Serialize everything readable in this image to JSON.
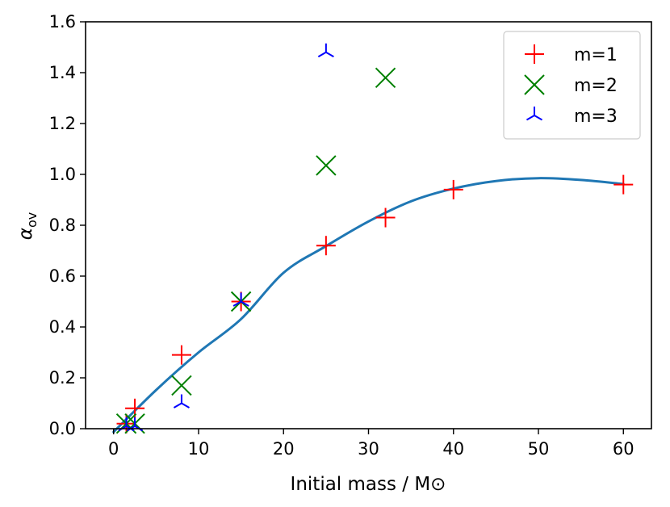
{
  "chart_data": {
    "type": "scatter",
    "title": "",
    "xlabel": "Initial mass / M⊙",
    "ylabel": "αov",
    "ylabel_main": "α",
    "ylabel_sub": "ov",
    "xlim": [
      -3.3,
      63.3
    ],
    "ylim": [
      0.0,
      1.6
    ],
    "xticks": [
      0,
      10,
      20,
      30,
      40,
      50,
      60
    ],
    "xtick_labels": [
      "0",
      "10",
      "20",
      "30",
      "40",
      "50",
      "60"
    ],
    "yticks": [
      0.0,
      0.2,
      0.4,
      0.6,
      0.8,
      1.0,
      1.2,
      1.4,
      1.6
    ],
    "ytick_labels": [
      "0.0",
      "0.2",
      "0.4",
      "0.6",
      "0.8",
      "1.0",
      "1.2",
      "1.4",
      "1.6"
    ],
    "grid": false,
    "legend_position": "top-right",
    "series": [
      {
        "name": "m=1",
        "marker": "plus",
        "color": "#ff0000",
        "x": [
          1.5,
          2.5,
          8,
          15,
          25,
          32,
          40,
          60
        ],
        "y": [
          0.02,
          0.08,
          0.29,
          0.5,
          0.72,
          0.83,
          0.94,
          0.96
        ]
      },
      {
        "name": "m=2",
        "marker": "x",
        "color": "#008000",
        "x": [
          1.5,
          2.5,
          8,
          15,
          25,
          32
        ],
        "y": [
          0.02,
          0.02,
          0.17,
          0.5,
          1.035,
          1.38
        ]
      },
      {
        "name": "m=3",
        "marker": "tri_down",
        "color": "#0000ff",
        "x": [
          1.5,
          2.5,
          8,
          15,
          25
        ],
        "y": [
          0.01,
          0.01,
          0.1,
          0.5,
          1.48
        ]
      }
    ],
    "fit_curve": {
      "name": "fit",
      "color": "#1f77b4",
      "x": [
        0,
        5,
        10,
        15,
        20,
        25,
        30,
        35,
        40,
        45,
        50,
        55,
        60
      ],
      "y": [
        -0.013,
        0.152,
        0.3,
        0.431,
        0.613,
        0.718,
        0.815,
        0.894,
        0.944,
        0.974,
        0.985,
        0.978,
        0.962
      ]
    }
  }
}
